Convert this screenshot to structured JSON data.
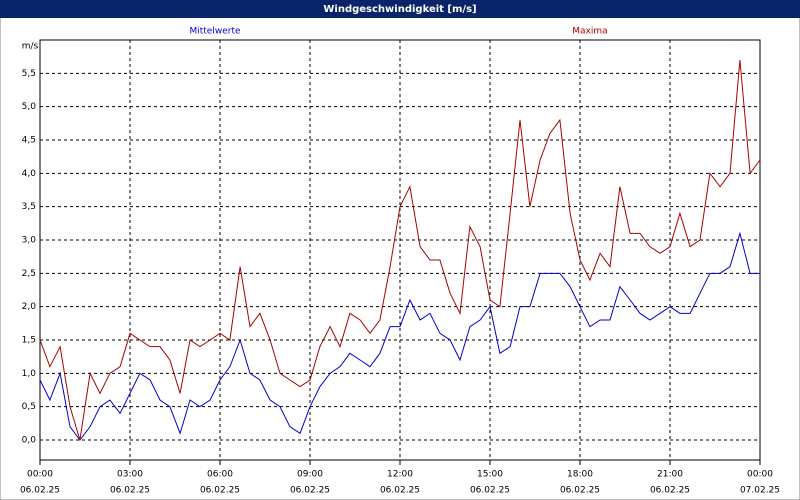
{
  "chart_data": {
    "type": "line",
    "title": "Windgeschwindigkeit [m/s]",
    "y_unit": "m/s",
    "x": [
      0,
      0.33,
      0.67,
      1,
      1.33,
      1.67,
      2,
      2.33,
      2.67,
      3,
      3.33,
      3.67,
      4,
      4.33,
      4.67,
      5,
      5.33,
      5.67,
      6,
      6.33,
      6.67,
      7,
      7.33,
      7.67,
      8,
      8.33,
      8.67,
      9,
      9.33,
      9.67,
      10,
      10.33,
      10.67,
      11,
      11.33,
      11.67,
      12,
      12.33,
      12.67,
      13,
      13.33,
      13.67,
      14,
      14.33,
      14.67,
      15,
      15.33,
      15.67,
      16,
      16.33,
      16.67,
      17,
      17.33,
      17.67,
      18,
      18.33,
      18.67,
      19,
      19.33,
      19.67,
      20,
      20.33,
      20.67,
      21,
      21.33,
      21.67,
      22,
      22.33,
      22.67,
      23,
      23.33,
      23.67,
      24
    ],
    "series": [
      {
        "name": "Mittelwerte",
        "color": "#0000cc",
        "values": [
          0.9,
          0.6,
          1.0,
          0.2,
          0.0,
          0.2,
          0.5,
          0.6,
          0.4,
          0.7,
          1.0,
          0.9,
          0.6,
          0.5,
          0.1,
          0.6,
          0.5,
          0.6,
          0.9,
          1.1,
          1.5,
          1.0,
          0.9,
          0.6,
          0.5,
          0.2,
          0.1,
          0.5,
          0.8,
          1.0,
          1.1,
          1.3,
          1.2,
          1.1,
          1.3,
          1.7,
          1.7,
          2.1,
          1.8,
          1.9,
          1.6,
          1.5,
          1.2,
          1.7,
          1.8,
          2.0,
          1.3,
          1.4,
          2.0,
          2.0,
          2.5,
          2.5,
          2.5,
          2.3,
          2.0,
          1.7,
          1.8,
          1.8,
          2.3,
          2.1,
          1.9,
          1.8,
          1.9,
          2.0,
          1.9,
          1.9,
          2.2,
          2.5,
          2.5,
          2.6,
          3.1,
          2.5,
          2.5
        ]
      },
      {
        "name": "Maxima",
        "color": "#aa0000",
        "values": [
          1.5,
          1.1,
          1.4,
          0.5,
          0.0,
          1.0,
          0.7,
          1.0,
          1.1,
          1.6,
          1.5,
          1.4,
          1.4,
          1.2,
          0.7,
          1.5,
          1.4,
          1.5,
          1.6,
          1.5,
          2.6,
          1.7,
          1.9,
          1.5,
          1.0,
          0.9,
          0.8,
          0.9,
          1.4,
          1.7,
          1.4,
          1.9,
          1.8,
          1.6,
          1.8,
          2.6,
          3.5,
          3.8,
          2.9,
          2.7,
          2.7,
          2.2,
          1.9,
          3.2,
          2.9,
          2.1,
          2.0,
          3.4,
          4.8,
          3.5,
          4.2,
          4.6,
          4.8,
          3.4,
          2.7,
          2.4,
          2.8,
          2.6,
          3.8,
          3.1,
          3.1,
          2.9,
          2.8,
          2.9,
          3.4,
          2.9,
          3.0,
          4.0,
          3.8,
          4.0,
          5.7,
          4.0,
          4.2
        ]
      }
    ],
    "xlim": [
      0,
      24
    ],
    "xticks": [
      {
        "value": 0,
        "label": "00:00"
      },
      {
        "value": 3,
        "label": "03:00"
      },
      {
        "value": 6,
        "label": "06:00"
      },
      {
        "value": 9,
        "label": "09:00"
      },
      {
        "value": 12,
        "label": "12:00"
      },
      {
        "value": 15,
        "label": "15:00"
      },
      {
        "value": 18,
        "label": "18:00"
      },
      {
        "value": 21,
        "label": "21:00"
      },
      {
        "value": 24,
        "label": "00:00"
      }
    ],
    "xtick_dates": [
      "06.02.25",
      "06.02.25",
      "06.02.25",
      "06.02.25",
      "06.02.25",
      "06.02.25",
      "06.02.25",
      "06.02.25",
      "07.02.25"
    ],
    "ylim": [
      -0.3,
      6.0
    ],
    "yticks": [
      {
        "value": 0,
        "label": "0,0"
      },
      {
        "value": 0.5,
        "label": "0,5"
      },
      {
        "value": 1,
        "label": "1,0"
      },
      {
        "value": 1.5,
        "label": "1,5"
      },
      {
        "value": 2,
        "label": "2,0"
      },
      {
        "value": 2.5,
        "label": "2,5"
      },
      {
        "value": 3,
        "label": "3,0"
      },
      {
        "value": 3.5,
        "label": "3,5"
      },
      {
        "value": 4,
        "label": "4,0"
      },
      {
        "value": 4.5,
        "label": "4,5"
      },
      {
        "value": 5,
        "label": "5,0"
      },
      {
        "value": 5.5,
        "label": "5,5"
      }
    ],
    "grid": true
  }
}
